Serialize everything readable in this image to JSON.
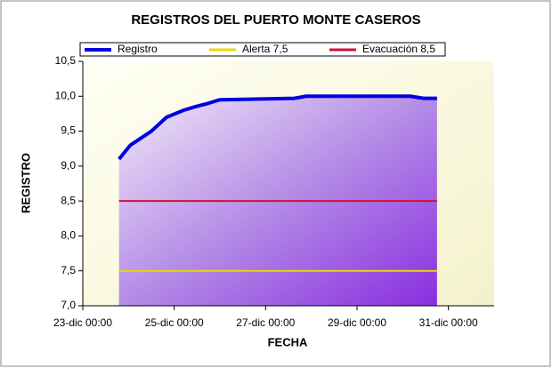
{
  "chart_data": {
    "type": "line",
    "title": "REGISTROS DEL PUERTO MONTE CASEROS",
    "x_label": "FECHA",
    "y_label": "REGISTRO",
    "x": [
      "23-dic 19:00",
      "24-dic 01:00",
      "24-dic 12:00",
      "24-dic 20:00",
      "25-dic 05:00",
      "25-dic 11:00",
      "25-dic 18:00",
      "26-dic 00:00",
      "27-dic 15:00",
      "27-dic 21:00",
      "30-dic 04:00",
      "30-dic 11:00",
      "30-dic 18:00"
    ],
    "series": [
      {
        "name": "Registro",
        "color": "#0000e0",
        "values": [
          9.1,
          9.3,
          9.5,
          9.7,
          9.8,
          9.85,
          9.9,
          9.95,
          9.97,
          10.0,
          10.0,
          9.97,
          9.97
        ]
      }
    ],
    "thresholds": [
      {
        "name": "Alerta 7,5",
        "color": "#e8d800",
        "value": 7.5
      },
      {
        "name": "Evacuación 8,5",
        "color": "#d0103a",
        "value": 8.5
      }
    ],
    "xlim": [
      "23-dic 00:00",
      "1-ene 00:00"
    ],
    "xticks": [
      "23-dic 00:00",
      "25-dic 00:00",
      "27-dic 00:00",
      "29-dic 00:00",
      "31-dic 00:00"
    ],
    "ylim": [
      7,
      10.5
    ],
    "yticks": [
      {
        "value": 7,
        "label": "7,0"
      },
      {
        "value": 7.5,
        "label": "7,5"
      },
      {
        "value": 8,
        "label": "8,0"
      },
      {
        "value": 8.5,
        "label": "8,5"
      },
      {
        "value": 9,
        "label": "9,0"
      },
      {
        "value": 9.5,
        "label": "9,5"
      },
      {
        "value": 10,
        "label": "10,0"
      },
      {
        "value": 10.5,
        "label": "10,5"
      }
    ]
  }
}
